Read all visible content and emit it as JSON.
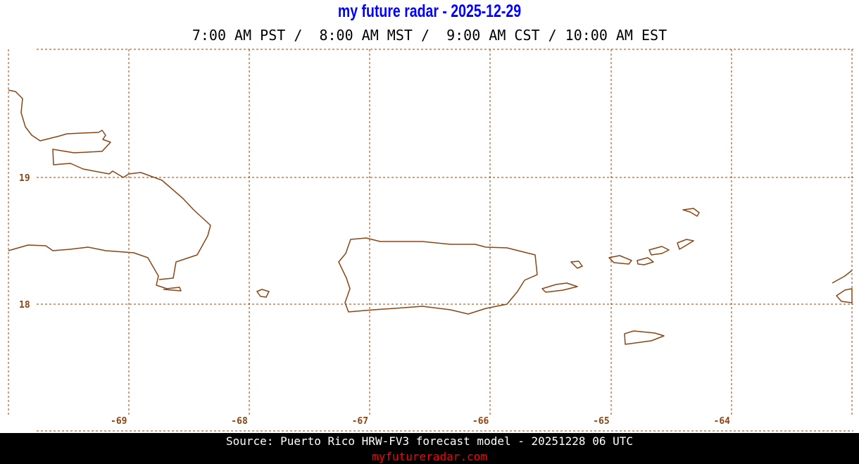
{
  "header": {
    "title": "my future radar - 2025-12-29",
    "times": "7:00 AM PST /  8:00 AM MST /  9:00 AM CST / 10:00 AM EST"
  },
  "map": {
    "region": "Puerto Rico",
    "line_color": "#8b4513",
    "longitude_labels": [
      "-69",
      "-68",
      "-67",
      "-66",
      "-65",
      "-64"
    ],
    "latitude_labels": [
      "19",
      "18"
    ]
  },
  "footer": {
    "source": "Source: Puerto Rico HRW-FV3 forecast model - 20251228 06 UTC",
    "site": "myfutureradar.com"
  }
}
